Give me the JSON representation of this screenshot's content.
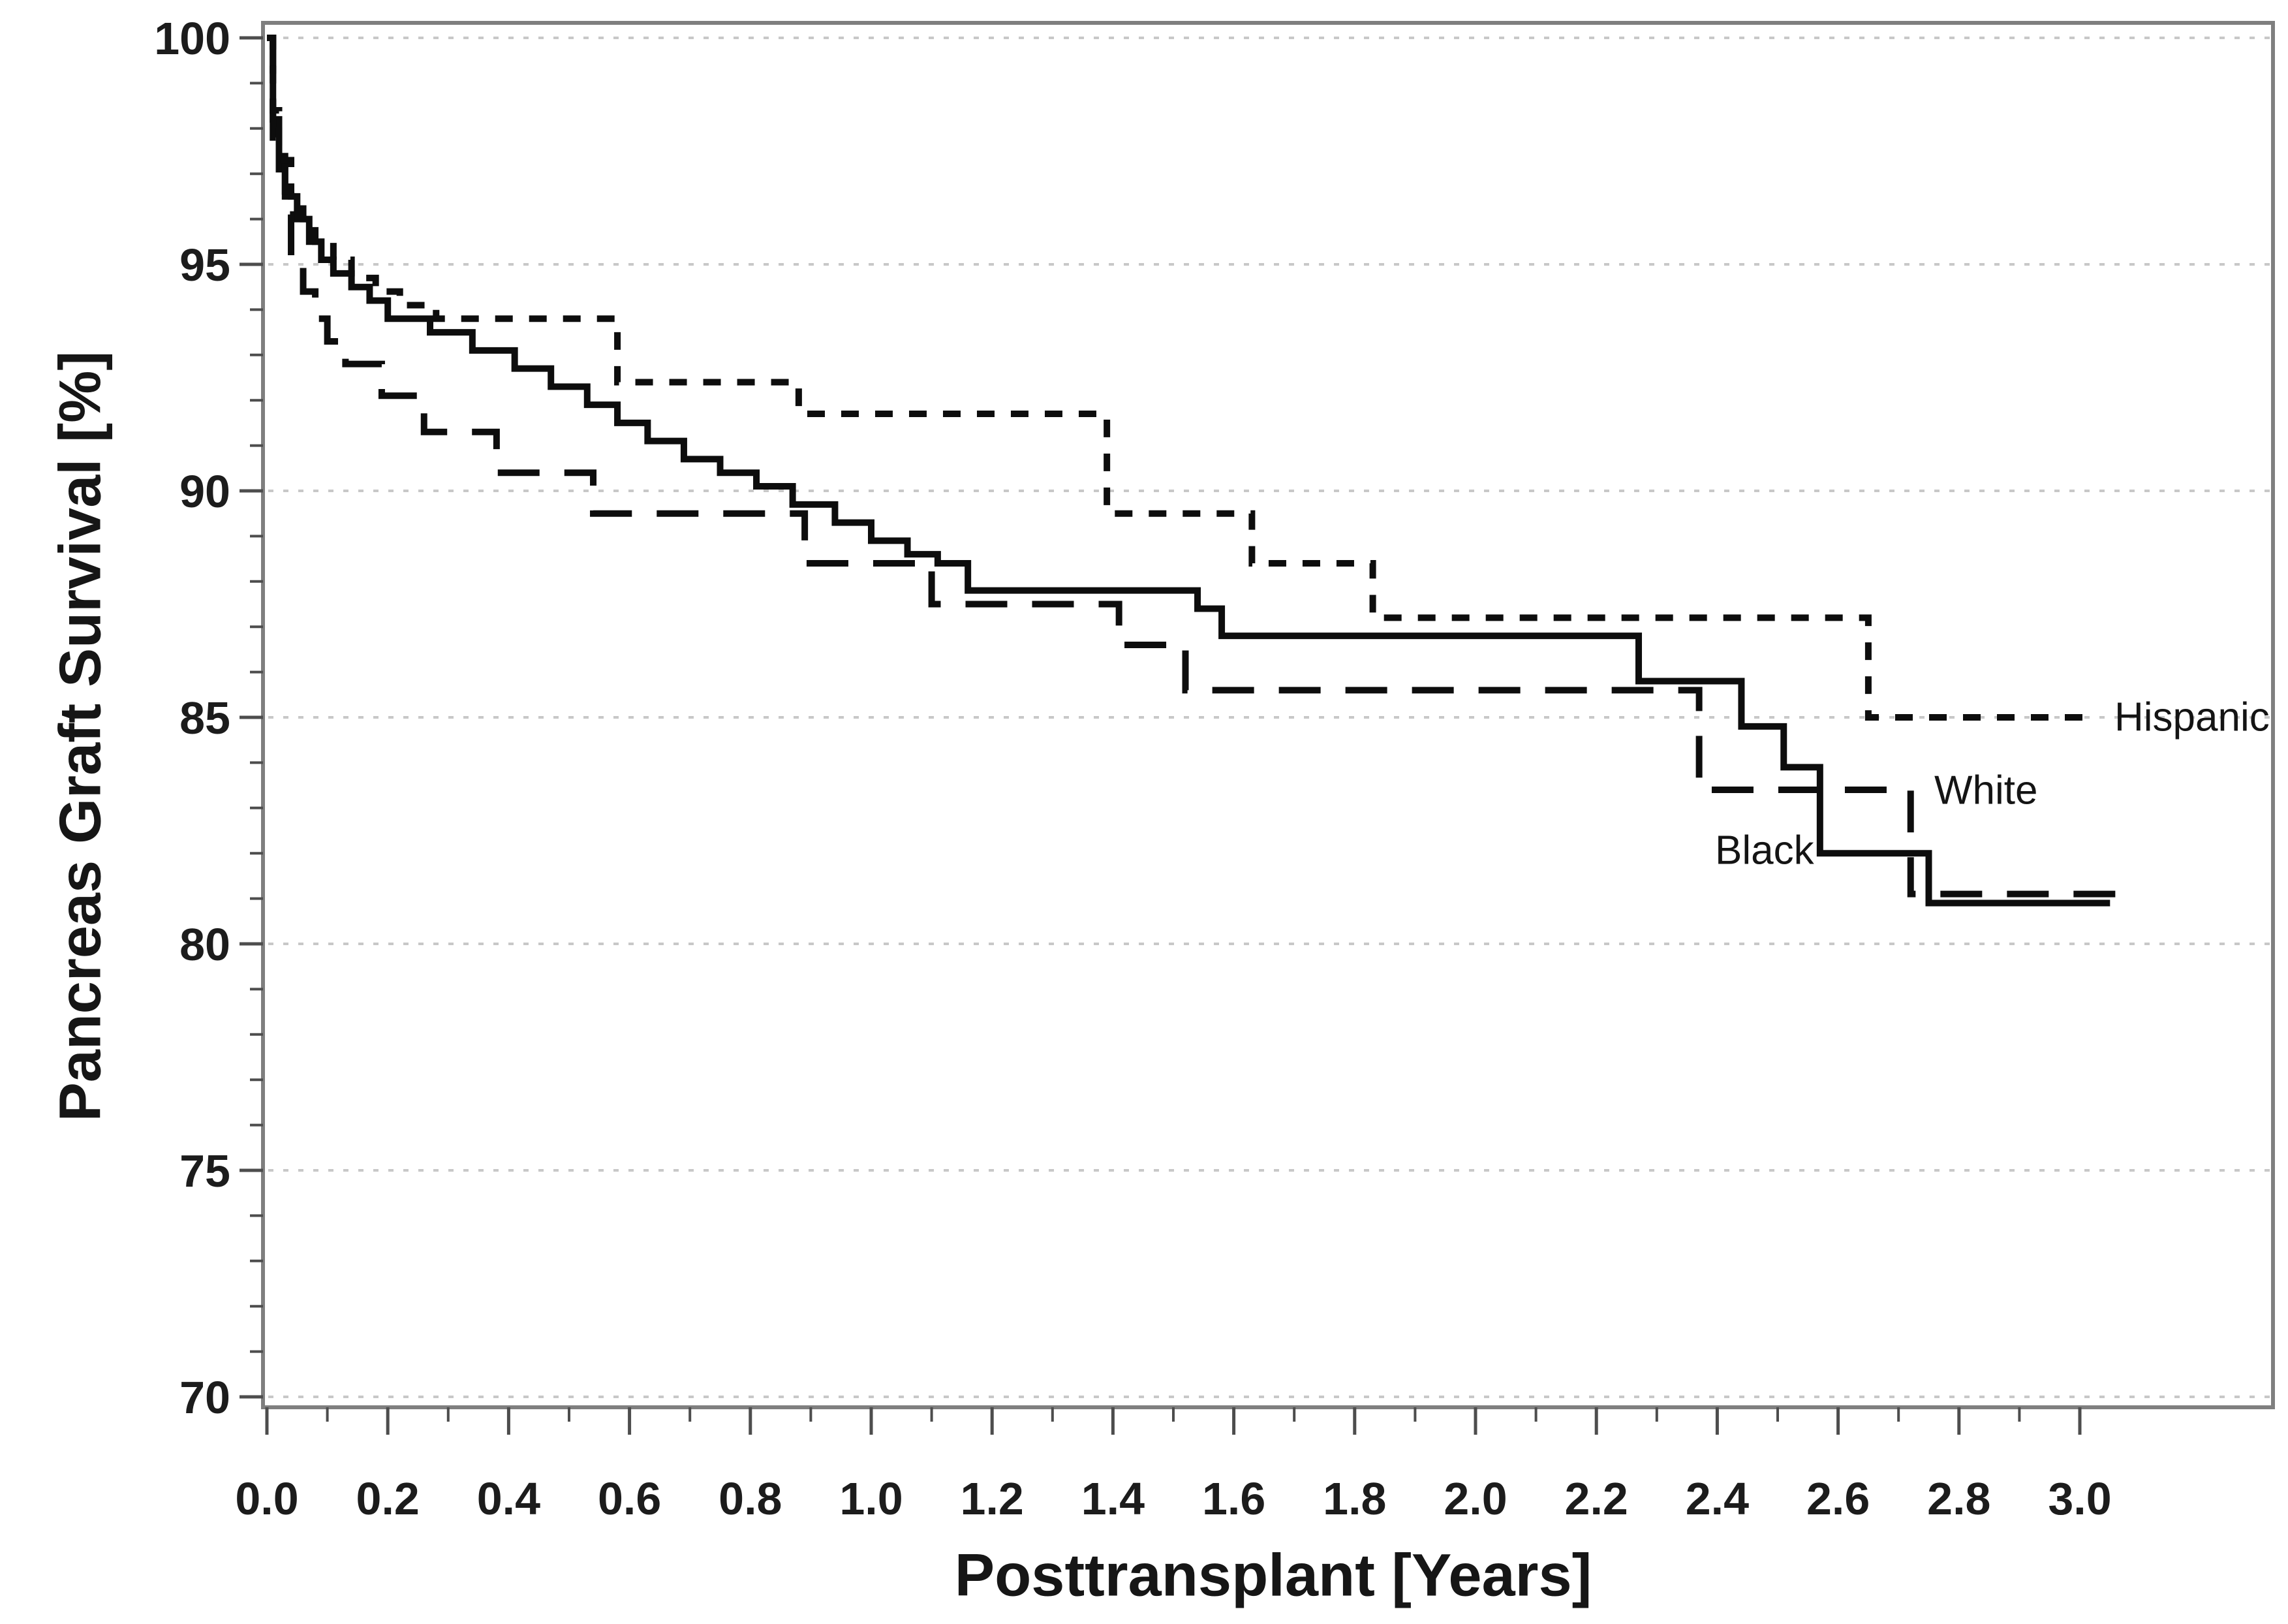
{
  "figure": {
    "background": "#ffffff"
  },
  "chart_data": {
    "type": "line",
    "subtype": "kaplan-meier-step-curves",
    "title": "",
    "xlabel": "Posttransplant [Years]",
    "ylabel": "Pancreas Graft Survival [%]",
    "xlim": [
      0,
      3.32
    ],
    "ylim": [
      70,
      100
    ],
    "grid": "horizontal dotted gridlines at each major y tick",
    "legend_position": "labels at right end of each curve",
    "x_major_ticks": [
      0.0,
      0.2,
      0.4,
      0.6,
      0.8,
      1.0,
      1.2,
      1.4,
      1.6,
      1.8,
      2.0,
      2.2,
      2.4,
      2.6,
      2.8,
      3.0
    ],
    "x_tick_labels": [
      "0.0",
      "0.2",
      "0.4",
      "0.6",
      "0.8",
      "1.0",
      "1.2",
      "1.4",
      "1.6",
      "1.8",
      "2.0",
      "2.2",
      "2.4",
      "2.6",
      "2.8",
      "3.0"
    ],
    "x_minor_tick_step": 0.1,
    "y_major_ticks": [
      70,
      75,
      80,
      85,
      90,
      95,
      100
    ],
    "y_tick_labels": [
      "70",
      "75",
      "80",
      "85",
      "90",
      "95",
      "100"
    ],
    "y_minor_tick_step": 1,
    "colors": {
      "line": "#0d0d0d",
      "grid": "#c8c8c8",
      "frame": "#7f7f7f",
      "tick": "#4d4d4d",
      "tick_label": "#1c1c1c",
      "curve_label": "#141414"
    },
    "series": [
      {
        "name": "Black",
        "label": "Black",
        "style": "solid",
        "points": [
          [
            0.0,
            100
          ],
          [
            0.01,
            98.2
          ],
          [
            0.02,
            97.1
          ],
          [
            0.03,
            96.5
          ],
          [
            0.05,
            96.0
          ],
          [
            0.07,
            95.5
          ],
          [
            0.09,
            95.1
          ],
          [
            0.11,
            94.8
          ],
          [
            0.14,
            94.5
          ],
          [
            0.17,
            94.2
          ],
          [
            0.2,
            93.8
          ],
          [
            0.27,
            93.5
          ],
          [
            0.34,
            93.1
          ],
          [
            0.41,
            92.7
          ],
          [
            0.47,
            92.3
          ],
          [
            0.53,
            91.9
          ],
          [
            0.58,
            91.5
          ],
          [
            0.63,
            91.1
          ],
          [
            0.69,
            90.7
          ],
          [
            0.75,
            90.4
          ],
          [
            0.81,
            90.1
          ],
          [
            0.87,
            89.7
          ],
          [
            0.94,
            89.3
          ],
          [
            1.0,
            88.9
          ],
          [
            1.06,
            88.6
          ],
          [
            1.11,
            88.4
          ],
          [
            1.16,
            87.8
          ],
          [
            1.54,
            87.4
          ],
          [
            1.58,
            86.8
          ],
          [
            2.27,
            85.8
          ],
          [
            2.44,
            84.8
          ],
          [
            2.51,
            83.9
          ],
          [
            2.57,
            82.0
          ],
          [
            2.75,
            80.9
          ],
          [
            3.05,
            80.9
          ]
        ]
      },
      {
        "name": "White",
        "label": "White",
        "style": "long-dash",
        "points": [
          [
            0.0,
            100
          ],
          [
            0.01,
            97.8
          ],
          [
            0.03,
            96.1
          ],
          [
            0.04,
            95.2
          ],
          [
            0.06,
            94.4
          ],
          [
            0.08,
            93.8
          ],
          [
            0.1,
            93.3
          ],
          [
            0.13,
            92.8
          ],
          [
            0.19,
            92.1
          ],
          [
            0.26,
            91.3
          ],
          [
            0.38,
            90.4
          ],
          [
            0.54,
            89.5
          ],
          [
            0.89,
            88.4
          ],
          [
            1.1,
            87.5
          ],
          [
            1.41,
            86.6
          ],
          [
            1.52,
            85.6
          ],
          [
            2.37,
            83.4
          ],
          [
            2.72,
            81.1
          ],
          [
            3.07,
            81.1
          ]
        ]
      },
      {
        "name": "Hispanic",
        "label": "Hispanic",
        "style": "short-dash",
        "points": [
          [
            0.0,
            100
          ],
          [
            0.01,
            98.4
          ],
          [
            0.02,
            97.3
          ],
          [
            0.04,
            96.5
          ],
          [
            0.06,
            96.0
          ],
          [
            0.08,
            95.5
          ],
          [
            0.11,
            95.1
          ],
          [
            0.14,
            94.7
          ],
          [
            0.18,
            94.4
          ],
          [
            0.22,
            94.1
          ],
          [
            0.28,
            93.8
          ],
          [
            0.58,
            92.4
          ],
          [
            0.88,
            91.7
          ],
          [
            1.39,
            89.5
          ],
          [
            1.63,
            88.4
          ],
          [
            1.83,
            87.2
          ],
          [
            2.65,
            85.0
          ],
          [
            3.02,
            85.0
          ]
        ]
      }
    ]
  }
}
